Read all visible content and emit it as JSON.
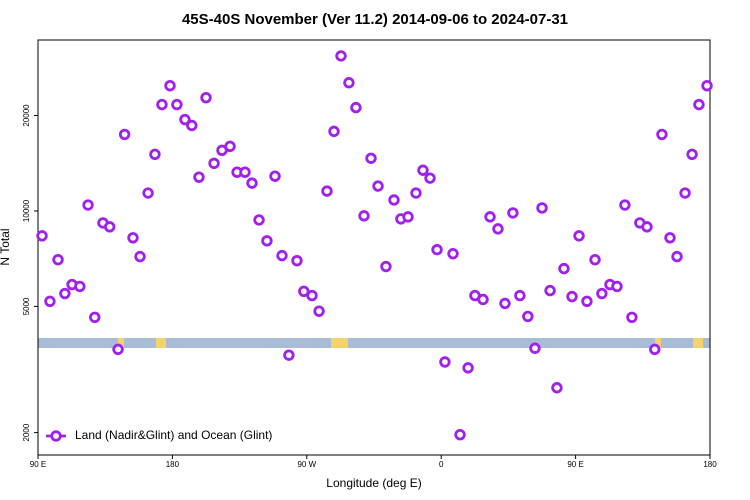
{
  "chart_data": {
    "type": "scatter",
    "title": "45S-40S November (Ver 11.2)   2014-09-06 to 2024-07-31",
    "x_label": "Longitude (deg E)",
    "y_label": "N Total",
    "log_y": true,
    "legend": "bottom-left",
    "xlim": [
      90,
      540
    ],
    "xticks": [
      {
        "value": 90,
        "label": "90 E"
      },
      {
        "value": 180,
        "label": "180"
      },
      {
        "value": 270,
        "label": "90 W"
      },
      {
        "value": 360,
        "label": "0"
      },
      {
        "value": 450,
        "label": "90 E"
      },
      {
        "value": 540,
        "label": "180"
      }
    ],
    "ylim": [
      1700,
      34600
    ],
    "yticks": [
      2000,
      5000,
      10000,
      20000
    ],
    "series": [
      {
        "name": "Land (Nadir&Glint) and Ocean (Glint)",
        "color": "#a020f0",
        "x": [
          92.7,
          98,
          103.4,
          108,
          112.8,
          118,
          123.5,
          128,
          133.5,
          138,
          143.6,
          148,
          153.6,
          158.3,
          163.7,
          168.3,
          173,
          178.4,
          183,
          188.4,
          193,
          197.8,
          202.5,
          207.9,
          213.2,
          218.6,
          223.3,
          228.6,
          233.3,
          238,
          243.3,
          248.7,
          253.4,
          258,
          263.4,
          268,
          273.5,
          278.2,
          283.5,
          288.2,
          292.9,
          298.2,
          302.9,
          308.3,
          313,
          317.7,
          323,
          328.4,
          333,
          337.8,
          343.1,
          347.8,
          352.5,
          357.2,
          362.5,
          367.9,
          372.6,
          378,
          382.6,
          388,
          392.7,
          398,
          402.7,
          408,
          412.7,
          418,
          422.8,
          427.5,
          432.9,
          437.5,
          442.2,
          447.6,
          452.3,
          457.6,
          463,
          467.6,
          473,
          477.7,
          483,
          487.7,
          493,
          497.8,
          503,
          507.8,
          513.2,
          517.9,
          523.3,
          528,
          532.6,
          538
        ],
        "values": [
          8350,
          5190,
          7020,
          5490,
          5860,
          5780,
          10440,
          4620,
          9170,
          8910,
          3660,
          17430,
          8230,
          7180,
          11390,
          15090,
          21650,
          24830,
          21650,
          19420,
          18600,
          12780,
          22760,
          14130,
          15530,
          15990,
          13250,
          13250,
          12240,
          9370,
          8050,
          12870,
          7230,
          3510,
          6970,
          5580,
          5410,
          4830,
          11550,
          17820,
          30830,
          25370,
          21180,
          9650,
          14660,
          11980,
          6680,
          10830,
          9440,
          9580,
          11390,
          13440,
          12690,
          7550,
          3340,
          7330,
          1970,
          3200,
          5410,
          5260,
          9580,
          8780,
          5110,
          9860,
          5410,
          4650,
          3690,
          10220,
          5610,
          2770,
          6580,
          5370,
          8350,
          5190,
          7020,
          5490,
          5860,
          5780,
          10440,
          4620,
          9170,
          8910,
          3660,
          17430,
          8230,
          7180,
          11390,
          15090,
          21650,
          24830
        ]
      }
    ]
  }
}
